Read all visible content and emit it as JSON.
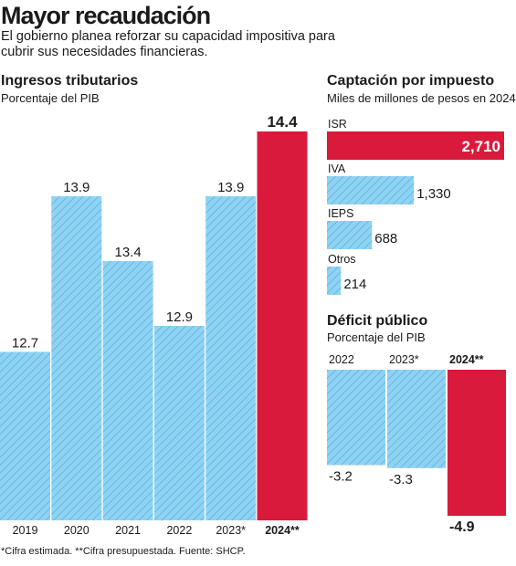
{
  "header": {
    "title": "Mayor recaudación",
    "subtitle": "El gobierno planea reforzar su capacidad impositiva para cubrir sus necesidades financieras."
  },
  "footnote": "*Cifra estimada. **Cifra presupuestada. Fuente: SHCP.",
  "colors": {
    "projected": "#8fd3f4",
    "highlight": "#d91a3c",
    "hatch": "#5fb0d8"
  },
  "chart_data": [
    {
      "type": "bar",
      "title": "Ingresos tributarios",
      "subtitle": "Porcentaje del PIB",
      "categories": [
        "2019",
        "2020",
        "2021",
        "2022",
        "2023*",
        "2024**"
      ],
      "values": [
        12.7,
        13.9,
        13.4,
        12.9,
        13.9,
        14.4
      ],
      "value_labels": [
        "12.7",
        "13.9",
        "13.4",
        "12.9",
        "13.9",
        "14.4"
      ],
      "highlight_index": 5,
      "ylim": [
        0,
        14.4
      ],
      "grid": false
    },
    {
      "type": "bar",
      "orientation": "horizontal",
      "title": "Captación por impuesto",
      "subtitle": "Miles de millones de pesos en 2024",
      "categories": [
        "ISR",
        "IVA",
        "IEPS",
        "Otros"
      ],
      "values": [
        2710,
        1330,
        688,
        214
      ],
      "value_labels": [
        "2,710",
        "1,330",
        "688",
        "214"
      ],
      "highlight_index": 0,
      "grid": false
    },
    {
      "type": "bar",
      "title": "Déficit público",
      "subtitle": "Porcentaje del PIB",
      "categories": [
        "2022",
        "2023*",
        "2024**"
      ],
      "values": [
        -3.2,
        -3.3,
        -4.9
      ],
      "value_labels": [
        "-3.2",
        "-3.3",
        "-4.9"
      ],
      "highlight_index": 2,
      "ylim": [
        -4.9,
        0
      ],
      "grid": false
    }
  ]
}
